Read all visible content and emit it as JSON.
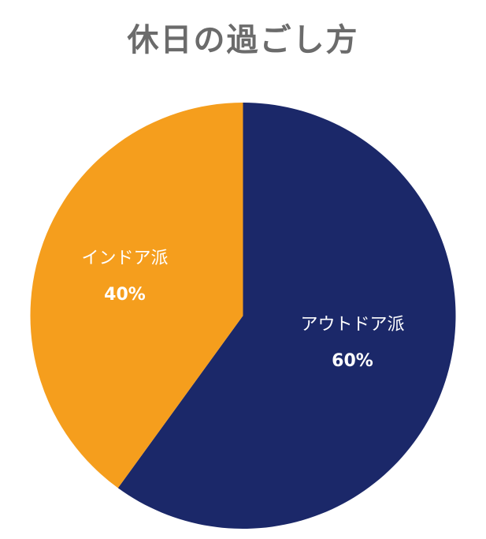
{
  "chart_data": {
    "type": "pie",
    "title": "休日の過ごし方",
    "slices": [
      {
        "label": "アウトドア派",
        "value": 60,
        "value_label": "60%",
        "color": "#1b2869"
      },
      {
        "label": "インドア派",
        "value": 40,
        "value_label": "40%",
        "color": "#f59e1d"
      }
    ],
    "start_angle_deg": 0,
    "direction": "clockwise",
    "legend": "none"
  }
}
